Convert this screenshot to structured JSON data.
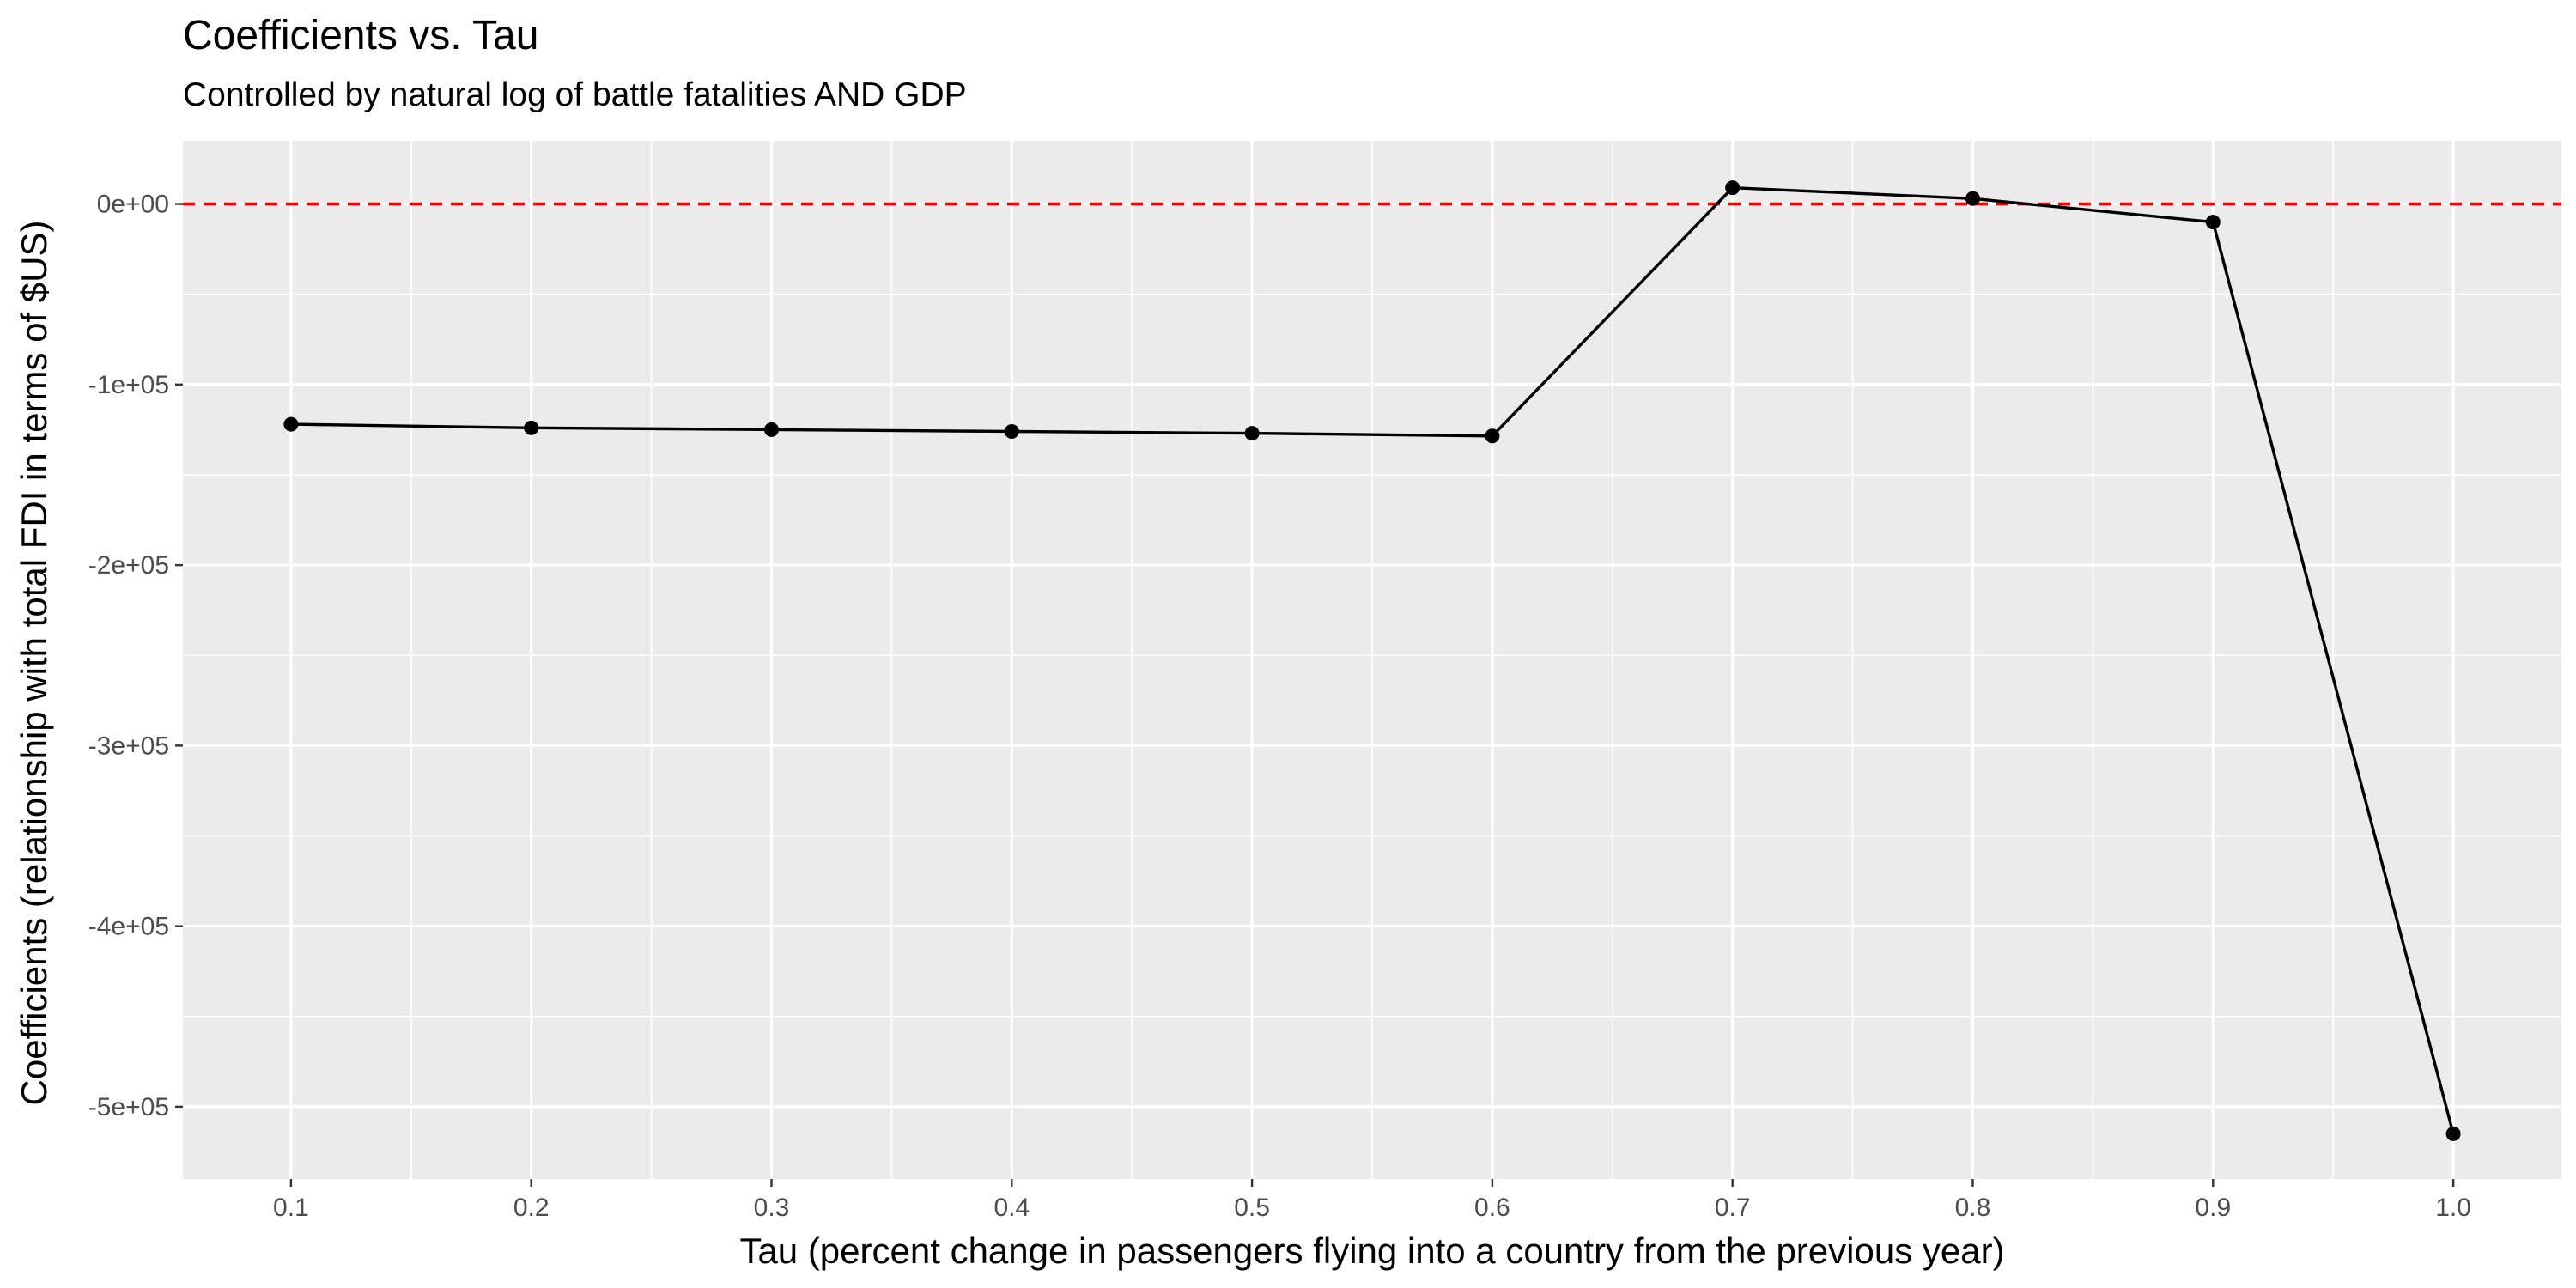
{
  "chart_data": {
    "type": "line",
    "title": "Coefficients vs. Tau",
    "subtitle": "Controlled by natural log of battle fatalities AND GDP",
    "xlabel": "Tau (percent change in passengers flying into a country from the previous year)",
    "ylabel": "Coefficients (relationship with total FDI in terms of $US)",
    "x_ticks": [
      0.1,
      0.2,
      0.3,
      0.4,
      0.5,
      0.6,
      0.7,
      0.8,
      0.9,
      1.0
    ],
    "x_tick_labels": [
      "0.1",
      "0.2",
      "0.3",
      "0.4",
      "0.5",
      "0.6",
      "0.7",
      "0.8",
      "0.9",
      "1.0"
    ],
    "y_ticks": [
      0,
      -100000,
      -200000,
      -300000,
      -400000,
      -500000
    ],
    "y_tick_labels": [
      "0e+00",
      "-1e+05",
      "-2e+05",
      "-3e+05",
      "-4e+05",
      "-5e+05"
    ],
    "xlim": [
      0.055,
      1.045
    ],
    "ylim": [
      -540000,
      35000
    ],
    "grid": true,
    "series": [
      {
        "x": [
          0.1,
          0.2,
          0.3,
          0.4,
          0.5,
          0.6,
          0.7,
          0.8,
          0.9,
          1.0
        ],
        "values": [
          -122000,
          -124000,
          -125000,
          -126000,
          -127000,
          -128500,
          9000,
          3000,
          -10000,
          -515000
        ],
        "color": "#000000",
        "markers": true
      }
    ],
    "reference_line": {
      "y": 0,
      "color": "#ff0000",
      "style": "dashed"
    },
    "panel_background": "#ebebeb",
    "grid_color": "#ffffff"
  }
}
